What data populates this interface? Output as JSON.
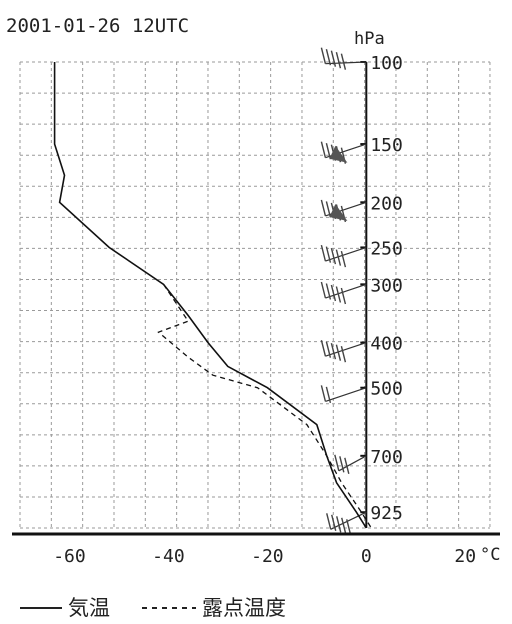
{
  "chart_data": {
    "type": "line",
    "title": "2001-01-26 12UTC",
    "x_unit": "°C",
    "y_unit": "hPa",
    "x_ticks": [
      -60,
      -40,
      -20,
      0,
      20
    ],
    "y_ticks": [
      100,
      150,
      200,
      250,
      300,
      400,
      500,
      700,
      925
    ],
    "xlim": [
      -70,
      25
    ],
    "ylim": [
      1000,
      100
    ],
    "y_scale": "log",
    "grid": true,
    "legend_position": "bottom",
    "series": [
      {
        "name": "気温",
        "style": "solid",
        "points": [
          {
            "t": -63,
            "p": 100
          },
          {
            "t": -63,
            "p": 150
          },
          {
            "t": -61,
            "p": 175
          },
          {
            "t": -62,
            "p": 200
          },
          {
            "t": -52,
            "p": 250
          },
          {
            "t": -41,
            "p": 300
          },
          {
            "t": -36,
            "p": 350
          },
          {
            "t": -32,
            "p": 400
          },
          {
            "t": -28,
            "p": 450
          },
          {
            "t": -20,
            "p": 500
          },
          {
            "t": -10,
            "p": 600
          },
          {
            "t": -8,
            "p": 700
          },
          {
            "t": -6,
            "p": 800
          },
          {
            "t": -2,
            "p": 925
          },
          {
            "t": 0,
            "p": 1000
          }
        ]
      },
      {
        "name": "露点温度",
        "style": "dashed",
        "points": [
          {
            "t": -41,
            "p": 300
          },
          {
            "t": -36,
            "p": 360
          },
          {
            "t": -42,
            "p": 380
          },
          {
            "t": -36,
            "p": 430
          },
          {
            "t": -31,
            "p": 470
          },
          {
            "t": -22,
            "p": 500
          },
          {
            "t": -12,
            "p": 600
          },
          {
            "t": -8,
            "p": 700
          },
          {
            "t": -5,
            "p": 800
          },
          {
            "t": -1,
            "p": 925
          },
          {
            "t": 1,
            "p": 1000
          }
        ]
      }
    ],
    "wind_barbs_levels": [
      100,
      150,
      200,
      250,
      300,
      400,
      500,
      700,
      925
    ]
  },
  "legend": {
    "temperature": "気温",
    "dewpoint": "露点温度"
  }
}
